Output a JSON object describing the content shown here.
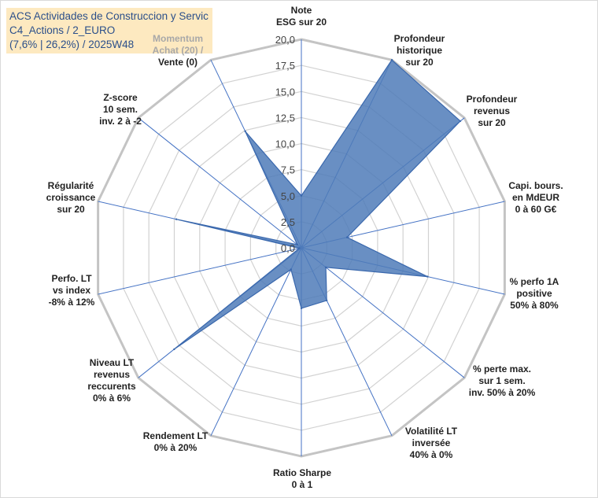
{
  "title": {
    "lines": [
      "ACS Actividades de Construccion y Servic",
      "C4_Actions / 2_EURO",
      "(7,6% | 26,2%) / 2025W48"
    ]
  },
  "colors": {
    "fill": "#4f7bb9",
    "stroke": "#3a68ad",
    "grid": "#d2d2d2",
    "outer_grid": "#c4c4c4",
    "spoke": "#4472c4",
    "title_bg": "#fde9c0",
    "title_text": "#2b4f8a"
  },
  "chart_data": {
    "type": "radar",
    "title": "",
    "range": [
      0,
      20
    ],
    "grid": true,
    "ticks": [
      "0,0",
      "2,5",
      "5,0",
      "7,5",
      "10,0",
      "12,5",
      "15,0",
      "17,5",
      "20,0"
    ],
    "tick_values": [
      0,
      2.5,
      5,
      7.5,
      10,
      12.5,
      15,
      17.5,
      20
    ],
    "axes": [
      {
        "lines": [
          "Note",
          "ESG sur 20"
        ],
        "value": 5.0
      },
      {
        "lines": [
          "Profondeur",
          "historique",
          "sur 20"
        ],
        "value": 20.0
      },
      {
        "lines": [
          "Profondeur",
          "revenus",
          "sur 20"
        ],
        "value": 19.5
      },
      {
        "lines": [
          "Capi. bours.",
          "en MdEUR",
          "0 à 60 G€"
        ],
        "value": 4.5
      },
      {
        "lines": [
          "% perfo 1A",
          "positive",
          "50% à 80%"
        ],
        "value": 12.4
      },
      {
        "lines": [
          "% perte max.",
          "sur 1 sem.",
          "inv. 50% à 20%"
        ],
        "value": 3.0
      },
      {
        "lines": [
          "Volatilité LT",
          "inversée",
          "40% à 0%"
        ],
        "value": 5.6
      },
      {
        "lines": [
          "Ratio Sharpe",
          "0 à 1"
        ],
        "value": 5.8
      },
      {
        "lines": [
          "Rendement LT",
          "0% à 20%"
        ],
        "value": 2.3
      },
      {
        "lines": [
          "Niveau LT",
          "revenus",
          "reccurents",
          "0% à 6%"
        ],
        "value": 15.6
      },
      {
        "lines": [
          "Perfo. LT",
          "vs index",
          "-8% à 12%"
        ],
        "value": 0.2
      },
      {
        "lines": [
          "Régularité",
          "croissance",
          "sur 20"
        ],
        "value": 12.3
      },
      {
        "lines": [
          "Z-score",
          "10 sem.",
          "inv. 2 à -2"
        ],
        "value": 0.5
      },
      {
        "lines": [
          "Momentum",
          "Achat (20) /",
          "Vente (0)"
        ],
        "value": 12.4
      }
    ]
  }
}
